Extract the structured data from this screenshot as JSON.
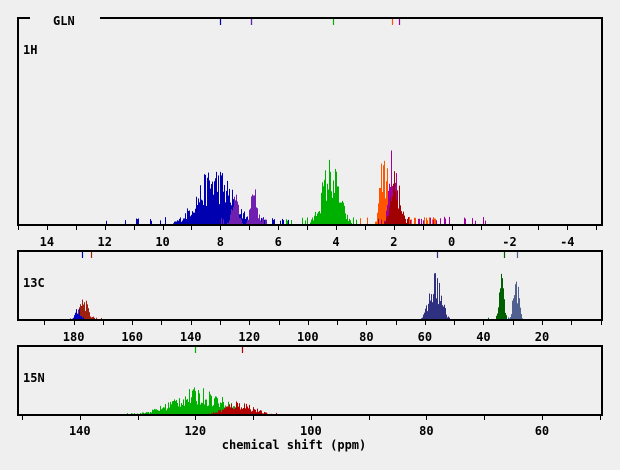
{
  "title": "GLN",
  "xlabel": "chemical shift (ppm)",
  "chart_data": [
    {
      "type": "bar",
      "nucleus": "1H",
      "xlim": [
        15,
        -5.2
      ],
      "major_tick_step": 1,
      "label_step": 2,
      "tick_labels": [
        "14",
        "12",
        "10",
        "8",
        "6",
        "4",
        "2",
        "0",
        "-2",
        "-4"
      ],
      "reference_marks": [
        {
          "ppm": 8.0,
          "color": "#0000b0"
        },
        {
          "ppm": 6.95,
          "color": "#207060"
        },
        {
          "ppm": 6.93,
          "color": "#7020b0"
        },
        {
          "ppm": 4.1,
          "color": "#00b000"
        },
        {
          "ppm": 2.05,
          "color": "#ff5500"
        },
        {
          "ppm": 1.83,
          "color": "#a000a0"
        }
      ],
      "series": [
        {
          "color": "#0000b0",
          "center": 8.2,
          "width": 0.6,
          "peak": 0.22,
          "range": [
            12,
            5.5
          ]
        },
        {
          "color": "#7020b0",
          "center": 7.5,
          "width": 0.12,
          "peak": 0.12,
          "range": [
            8,
            6.2
          ]
        },
        {
          "color": "#7020b0",
          "center": 6.85,
          "width": 0.12,
          "peak": 0.14,
          "range": [
            7.4,
            6.2
          ]
        },
        {
          "color": "#00b000",
          "center": 4.2,
          "width": 0.3,
          "peak": 0.25,
          "range": [
            5.8,
            3.0
          ]
        },
        {
          "color": "#ff5500",
          "center": 2.35,
          "width": 0.13,
          "peak": 0.3,
          "range": [
            3.2,
            0.4
          ]
        },
        {
          "color": "#a000a0",
          "center": 2.05,
          "width": 0.13,
          "peak": 0.3,
          "range": [
            2.8,
            -1.2
          ]
        },
        {
          "color": "#a00000",
          "center": 1.95,
          "width": 0.16,
          "peak": 0.2,
          "range": [
            2.6,
            1.2
          ]
        }
      ]
    },
    {
      "type": "bar",
      "nucleus": "13C",
      "xlim": [
        199,
        -0.5
      ],
      "major_tick_step": 10,
      "label_step": 20,
      "tick_labels": [
        "180",
        "160",
        "140",
        "120",
        "100",
        "80",
        "60",
        "40",
        "20"
      ],
      "reference_marks": [
        {
          "ppm": 177.3,
          "color": "#0000c0"
        },
        {
          "ppm": 174.2,
          "color": "#a02010"
        },
        {
          "ppm": 56.0,
          "color": "#303080"
        },
        {
          "ppm": 33.0,
          "color": "#006000"
        },
        {
          "ppm": 28.5,
          "color": "#506090"
        }
      ],
      "series": [
        {
          "color": "#a02010",
          "center": 176.5,
          "width": 1.6,
          "peak": 0.25,
          "range": [
            179,
            170
          ]
        },
        {
          "color": "#0000c0",
          "center": 178.5,
          "width": 1.0,
          "peak": 0.15,
          "range": [
            182,
            176
          ]
        },
        {
          "color": "#303080",
          "center": 56.5,
          "width": 2.0,
          "peak": 0.55,
          "range": [
            62,
            51
          ]
        },
        {
          "color": "#006000",
          "center": 34.0,
          "width": 0.8,
          "peak": 0.55,
          "range": [
            40,
            31
          ]
        },
        {
          "color": "#506090",
          "center": 29.0,
          "width": 0.9,
          "peak": 0.55,
          "range": [
            32,
            24
          ]
        }
      ]
    },
    {
      "type": "bar",
      "nucleus": "15N",
      "xlim": [
        150.7,
        49.6
      ],
      "major_tick_step": 10,
      "label_step": 20,
      "tick_labels": [
        "140",
        "120",
        "100",
        "80",
        "60"
      ],
      "reference_marks": [
        {
          "ppm": 120.0,
          "color": "#00b000"
        },
        {
          "ppm": 112.0,
          "color": "#b00000"
        }
      ],
      "series": [
        {
          "color": "#00b000",
          "center": 119.5,
          "width": 4.5,
          "peak": 0.3,
          "range": [
            133,
            112
          ]
        },
        {
          "color": "#b00000",
          "center": 112.5,
          "width": 2.5,
          "peak": 0.16,
          "range": [
            118,
            106
          ]
        }
      ]
    }
  ]
}
